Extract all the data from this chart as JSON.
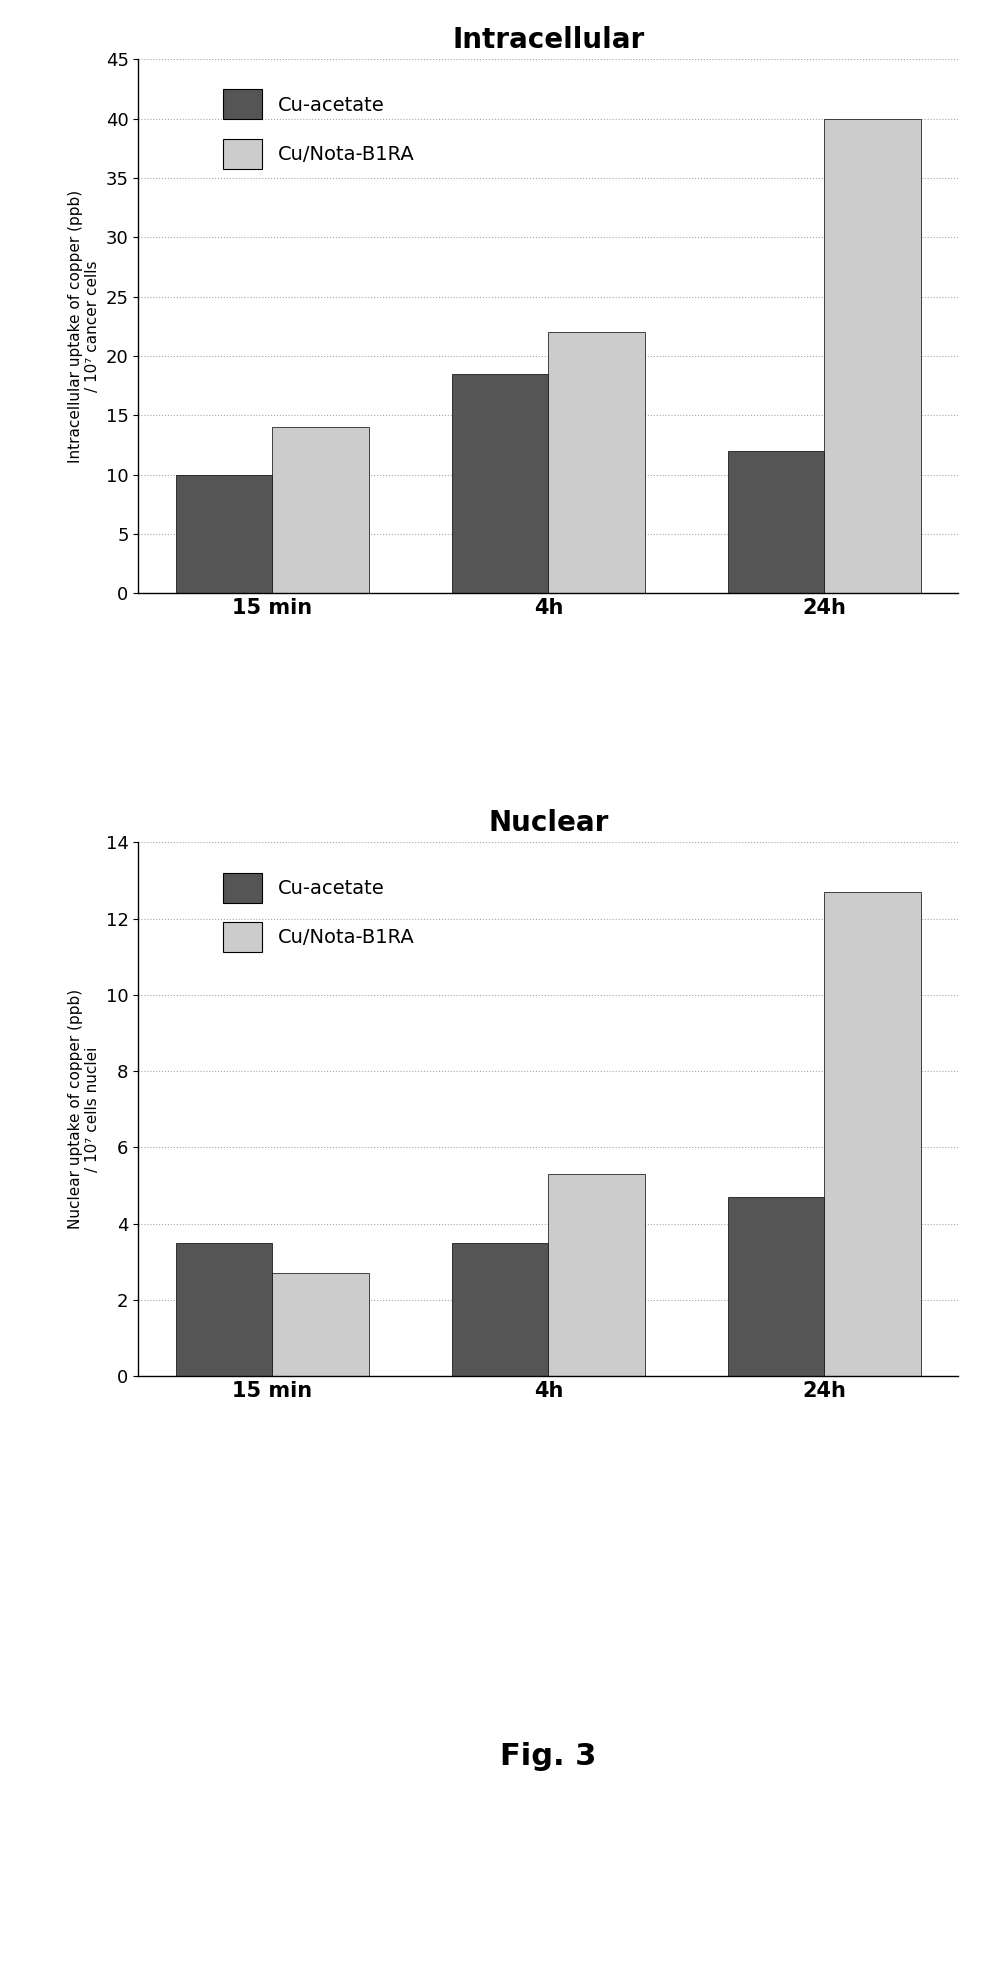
{
  "intracellular": {
    "title": "Intracellular",
    "categories": [
      "15 min",
      "4h",
      "24h"
    ],
    "cu_acetate": [
      10,
      18.5,
      12
    ],
    "cu_nota": [
      14,
      22,
      40
    ],
    "ylabel_line1": "Intracellular uptake of copper (ppb)",
    "ylabel_line2": "/ 10⁷ cancer cells",
    "ylim": [
      0,
      45
    ],
    "yticks": [
      0,
      5,
      10,
      15,
      20,
      25,
      30,
      35,
      40,
      45
    ]
  },
  "nuclear": {
    "title": "Nuclear",
    "categories": [
      "15 min",
      "4h",
      "24h"
    ],
    "cu_acetate": [
      3.5,
      3.5,
      4.7
    ],
    "cu_nota": [
      2.7,
      5.3,
      12.7
    ],
    "ylabel_line1": "Nuclear uptake of copper (ppb)",
    "ylabel_line2": "/ 10⁷ cells nuclei",
    "ylim": [
      0,
      14
    ],
    "yticks": [
      0,
      2,
      4,
      6,
      8,
      10,
      12,
      14
    ]
  },
  "fig_label": "Fig. 3",
  "cu_acetate_color": "#555555",
  "cu_nota_color": "#cccccc",
  "bar_width": 0.35,
  "legend_labels": [
    "Cu-acetate",
    "Cu/Nota-B1RA"
  ],
  "background_color": "#ffffff",
  "title_fontsize": 20,
  "label_fontsize": 11,
  "tick_fontsize": 13,
  "legend_fontsize": 14,
  "xtick_fontsize": 15,
  "fig_label_fontsize": 22
}
